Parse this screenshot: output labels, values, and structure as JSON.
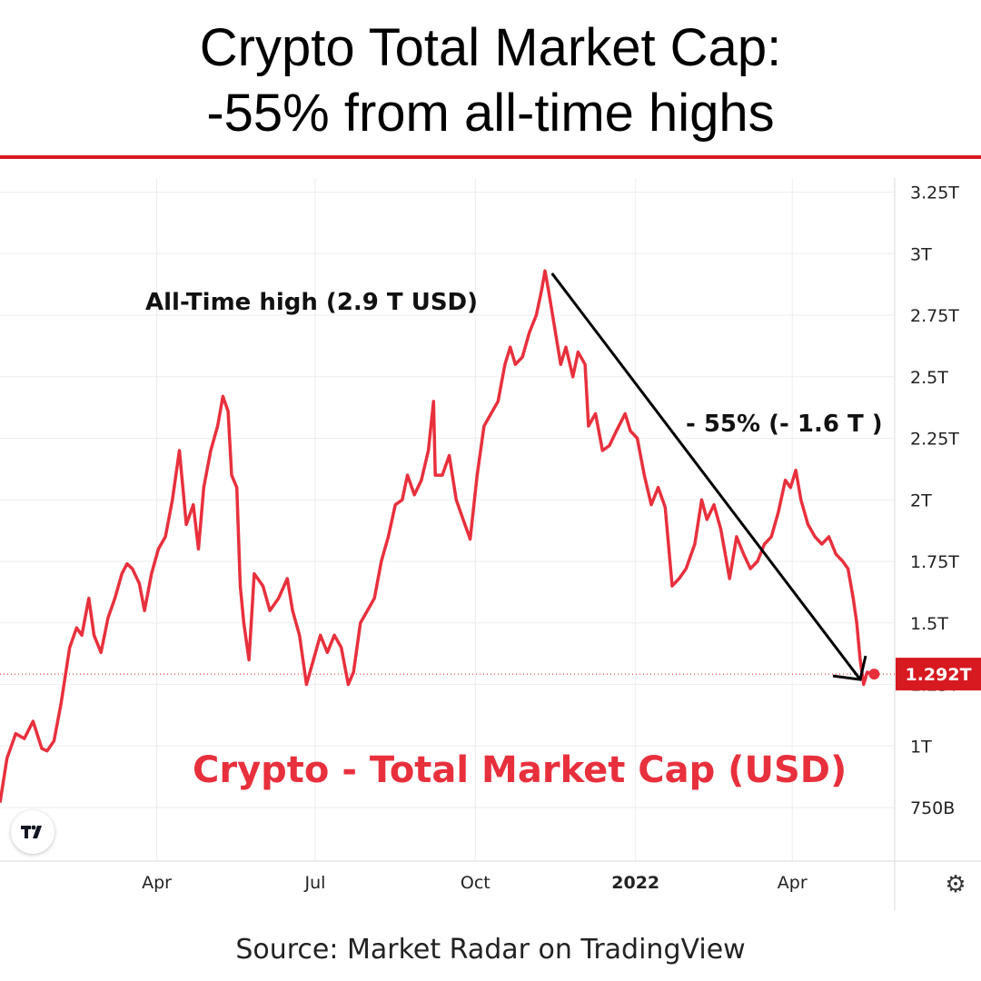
{
  "header": {
    "title_line1": "Crypto Total Market Cap:",
    "title_line2": "-55% from all-time highs"
  },
  "footer": {
    "source": "Source: Market Radar on TradingView"
  },
  "colors": {
    "accent": "#d71920",
    "series": "#e8303d",
    "arrow": "#000000",
    "grid": "#eeeeee"
  },
  "icons": {
    "logo": "tradingview-logo-icon",
    "settings": "gear-icon"
  },
  "chart_data": {
    "type": "line",
    "title": "Crypto - Total Market Cap (USD)",
    "y_unit": "USD",
    "ylim": [
      0.6,
      3.3
    ],
    "y_ticks": [
      {
        "value": 3.25,
        "label": "3.25T"
      },
      {
        "value": 3.0,
        "label": "3T"
      },
      {
        "value": 2.75,
        "label": "2.75T"
      },
      {
        "value": 2.5,
        "label": "2.5T"
      },
      {
        "value": 2.25,
        "label": "2.25T"
      },
      {
        "value": 2.0,
        "label": "2T"
      },
      {
        "value": 1.75,
        "label": "1.75T"
      },
      {
        "value": 1.5,
        "label": "1.5T"
      },
      {
        "value": 1.25,
        "label": "1.25T"
      },
      {
        "value": 1.0,
        "label": "1T"
      },
      {
        "value": 0.75,
        "label": "750B"
      }
    ],
    "x_ticks": [
      {
        "date": "2021-04-01",
        "label": "Apr",
        "bold": false
      },
      {
        "date": "2021-07-01",
        "label": "Jul",
        "bold": false
      },
      {
        "date": "2021-10-01",
        "label": "Oct",
        "bold": false
      },
      {
        "date": "2022-01-01",
        "label": "2022",
        "bold": true
      },
      {
        "date": "2022-04-01",
        "label": "Apr",
        "bold": false
      }
    ],
    "grid": true,
    "last_value": {
      "value": 1.292,
      "label": "1.292T"
    },
    "series": [
      {
        "points": [
          [
            "2021-01-01",
            0.77
          ],
          [
            "2021-01-05",
            0.95
          ],
          [
            "2021-01-10",
            1.05
          ],
          [
            "2021-01-15",
            1.03
          ],
          [
            "2021-01-20",
            1.1
          ],
          [
            "2021-01-25",
            0.99
          ],
          [
            "2021-01-28",
            0.98
          ],
          [
            "2021-02-01",
            1.02
          ],
          [
            "2021-02-05",
            1.17
          ],
          [
            "2021-02-10",
            1.4
          ],
          [
            "2021-02-14",
            1.48
          ],
          [
            "2021-02-17",
            1.45
          ],
          [
            "2021-02-21",
            1.6
          ],
          [
            "2021-02-24",
            1.45
          ],
          [
            "2021-02-28",
            1.38
          ],
          [
            "2021-03-04",
            1.52
          ],
          [
            "2021-03-08",
            1.6
          ],
          [
            "2021-03-12",
            1.7
          ],
          [
            "2021-03-15",
            1.74
          ],
          [
            "2021-03-18",
            1.72
          ],
          [
            "2021-03-22",
            1.66
          ],
          [
            "2021-03-25",
            1.55
          ],
          [
            "2021-03-29",
            1.7
          ],
          [
            "2021-04-02",
            1.8
          ],
          [
            "2021-04-06",
            1.85
          ],
          [
            "2021-04-10",
            2.0
          ],
          [
            "2021-04-14",
            2.2
          ],
          [
            "2021-04-18",
            1.9
          ],
          [
            "2021-04-22",
            1.98
          ],
          [
            "2021-04-25",
            1.8
          ],
          [
            "2021-04-28",
            2.05
          ],
          [
            "2021-05-02",
            2.2
          ],
          [
            "2021-05-06",
            2.3
          ],
          [
            "2021-05-09",
            2.42
          ],
          [
            "2021-05-12",
            2.36
          ],
          [
            "2021-05-14",
            2.1
          ],
          [
            "2021-05-17",
            2.05
          ],
          [
            "2021-05-19",
            1.65
          ],
          [
            "2021-05-21",
            1.5
          ],
          [
            "2021-05-24",
            1.35
          ],
          [
            "2021-05-27",
            1.7
          ],
          [
            "2021-06-01",
            1.65
          ],
          [
            "2021-06-05",
            1.55
          ],
          [
            "2021-06-10",
            1.6
          ],
          [
            "2021-06-15",
            1.68
          ],
          [
            "2021-06-18",
            1.55
          ],
          [
            "2021-06-22",
            1.45
          ],
          [
            "2021-06-26",
            1.25
          ],
          [
            "2021-06-30",
            1.35
          ],
          [
            "2021-07-04",
            1.45
          ],
          [
            "2021-07-08",
            1.38
          ],
          [
            "2021-07-12",
            1.45
          ],
          [
            "2021-07-16",
            1.4
          ],
          [
            "2021-07-20",
            1.25
          ],
          [
            "2021-07-23",
            1.3
          ],
          [
            "2021-07-27",
            1.5
          ],
          [
            "2021-07-31",
            1.55
          ],
          [
            "2021-08-04",
            1.6
          ],
          [
            "2021-08-08",
            1.75
          ],
          [
            "2021-08-12",
            1.85
          ],
          [
            "2021-08-16",
            1.98
          ],
          [
            "2021-08-20",
            2.0
          ],
          [
            "2021-08-23",
            2.1
          ],
          [
            "2021-08-27",
            2.02
          ],
          [
            "2021-08-31",
            2.08
          ],
          [
            "2021-09-04",
            2.2
          ],
          [
            "2021-09-07",
            2.4
          ],
          [
            "2021-09-08",
            2.1
          ],
          [
            "2021-09-12",
            2.1
          ],
          [
            "2021-09-16",
            2.18
          ],
          [
            "2021-09-20",
            2.0
          ],
          [
            "2021-09-24",
            1.92
          ],
          [
            "2021-09-28",
            1.84
          ],
          [
            "2021-10-02",
            2.1
          ],
          [
            "2021-10-06",
            2.3
          ],
          [
            "2021-10-10",
            2.35
          ],
          [
            "2021-10-14",
            2.4
          ],
          [
            "2021-10-18",
            2.55
          ],
          [
            "2021-10-21",
            2.62
          ],
          [
            "2021-10-24",
            2.55
          ],
          [
            "2021-10-28",
            2.58
          ],
          [
            "2021-11-01",
            2.68
          ],
          [
            "2021-11-05",
            2.75
          ],
          [
            "2021-11-08",
            2.85
          ],
          [
            "2021-11-10",
            2.93
          ],
          [
            "2021-11-12",
            2.85
          ],
          [
            "2021-11-16",
            2.68
          ],
          [
            "2021-11-19",
            2.55
          ],
          [
            "2021-11-22",
            2.62
          ],
          [
            "2021-11-26",
            2.5
          ],
          [
            "2021-11-29",
            2.6
          ],
          [
            "2021-12-03",
            2.55
          ],
          [
            "2021-12-05",
            2.3
          ],
          [
            "2021-12-09",
            2.35
          ],
          [
            "2021-12-13",
            2.2
          ],
          [
            "2021-12-17",
            2.22
          ],
          [
            "2021-12-21",
            2.28
          ],
          [
            "2021-12-26",
            2.35
          ],
          [
            "2021-12-29",
            2.28
          ],
          [
            "2022-01-02",
            2.25
          ],
          [
            "2022-01-06",
            2.1
          ],
          [
            "2022-01-10",
            1.98
          ],
          [
            "2022-01-14",
            2.05
          ],
          [
            "2022-01-18",
            1.97
          ],
          [
            "2022-01-22",
            1.65
          ],
          [
            "2022-01-26",
            1.68
          ],
          [
            "2022-01-30",
            1.72
          ],
          [
            "2022-02-04",
            1.82
          ],
          [
            "2022-02-08",
            2.0
          ],
          [
            "2022-02-11",
            1.92
          ],
          [
            "2022-02-15",
            1.98
          ],
          [
            "2022-02-19",
            1.88
          ],
          [
            "2022-02-24",
            1.68
          ],
          [
            "2022-02-28",
            1.85
          ],
          [
            "2022-03-04",
            1.78
          ],
          [
            "2022-03-08",
            1.72
          ],
          [
            "2022-03-12",
            1.75
          ],
          [
            "2022-03-16",
            1.82
          ],
          [
            "2022-03-20",
            1.85
          ],
          [
            "2022-03-24",
            1.95
          ],
          [
            "2022-03-28",
            2.08
          ],
          [
            "2022-03-31",
            2.05
          ],
          [
            "2022-04-03",
            2.12
          ],
          [
            "2022-04-06",
            2.0
          ],
          [
            "2022-04-10",
            1.9
          ],
          [
            "2022-04-14",
            1.85
          ],
          [
            "2022-04-18",
            1.82
          ],
          [
            "2022-04-22",
            1.85
          ],
          [
            "2022-04-26",
            1.78
          ],
          [
            "2022-04-30",
            1.75
          ],
          [
            "2022-05-03",
            1.72
          ],
          [
            "2022-05-06",
            1.6
          ],
          [
            "2022-05-08",
            1.5
          ],
          [
            "2022-05-10",
            1.35
          ],
          [
            "2022-05-12",
            1.25
          ],
          [
            "2022-05-14",
            1.3
          ],
          [
            "2022-05-17",
            1.292
          ]
        ]
      }
    ],
    "annotations": [
      {
        "text": "All-Time high (2.9 T USD)"
      },
      {
        "text": "- 55% (- 1.6 T )"
      }
    ],
    "arrow": {
      "from": [
        "2021-11-14",
        2.92
      ],
      "to": [
        "2022-05-10",
        1.27
      ]
    }
  }
}
